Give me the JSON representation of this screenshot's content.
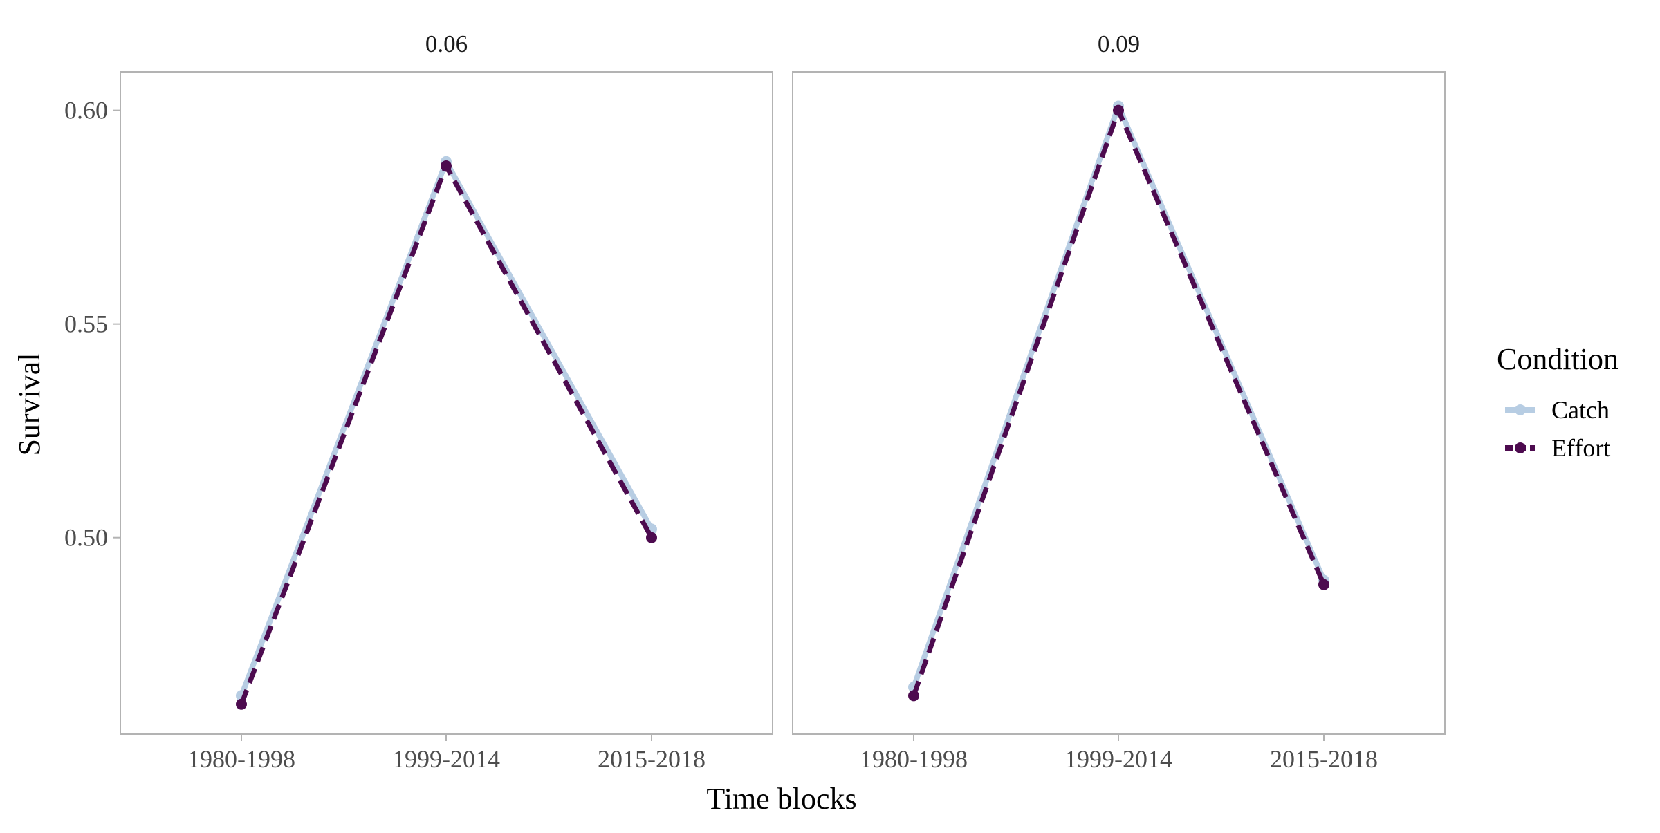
{
  "chart_data": {
    "type": "line",
    "xlabel": "Time blocks",
    "ylabel": "Survival",
    "categories": [
      "1980-1998",
      "1999-2014",
      "2015-2018"
    ],
    "ylim": [
      0.454,
      0.609
    ],
    "yticks": [
      0.5,
      0.55,
      0.6
    ],
    "ytick_labels": [
      "0.50",
      "0.55",
      "0.60"
    ],
    "grid": false,
    "legend": {
      "title": "Condition",
      "position": "right",
      "entries": [
        "Catch",
        "Effort"
      ]
    },
    "colors": {
      "Catch": "#b7cde3",
      "Effort": "#4d0b4f"
    },
    "panels": [
      {
        "label": "0.06",
        "series": [
          {
            "name": "Catch",
            "values": [
              0.463,
              0.588,
              0.502
            ]
          },
          {
            "name": "Effort",
            "values": [
              0.461,
              0.587,
              0.5
            ]
          }
        ]
      },
      {
        "label": "0.09",
        "series": [
          {
            "name": "Catch",
            "values": [
              0.465,
              0.601,
              0.49
            ]
          },
          {
            "name": "Effort",
            "values": [
              0.463,
              0.6,
              0.489
            ]
          }
        ]
      }
    ]
  }
}
